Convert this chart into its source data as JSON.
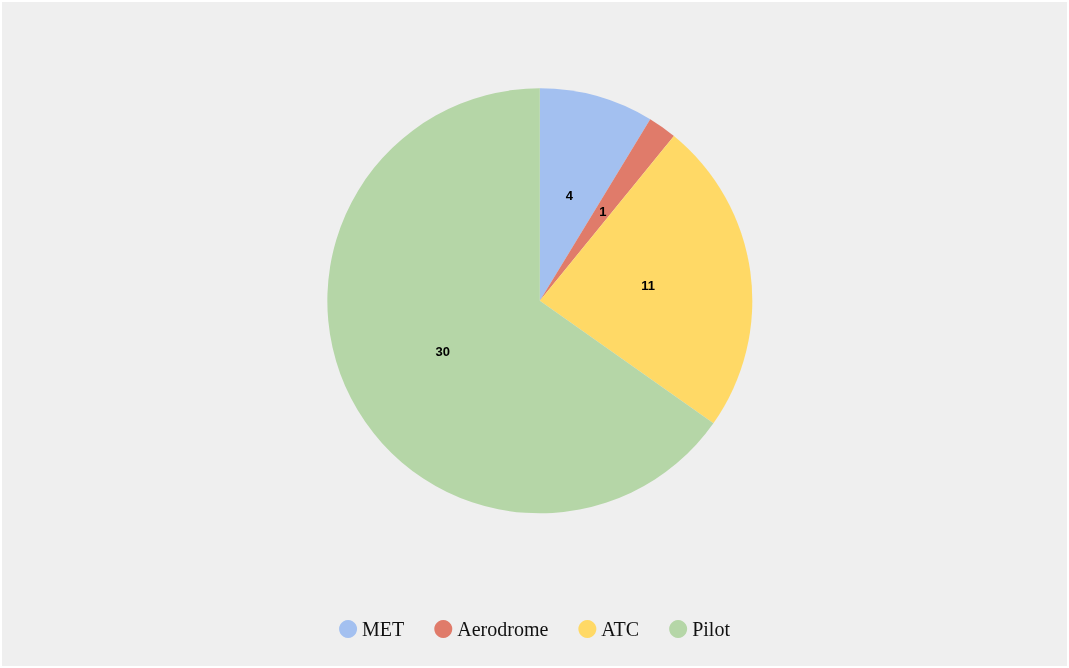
{
  "chart_data": {
    "type": "pie",
    "categories": [
      "MET",
      "Aerodrome",
      "ATC",
      "Pilot"
    ],
    "values": [
      4,
      1,
      11,
      30
    ],
    "colors": [
      "#a3c0f0",
      "#e07b6a",
      "#ffd966",
      "#b5d6a7"
    ],
    "data_labels": true,
    "legend": "bottom"
  }
}
